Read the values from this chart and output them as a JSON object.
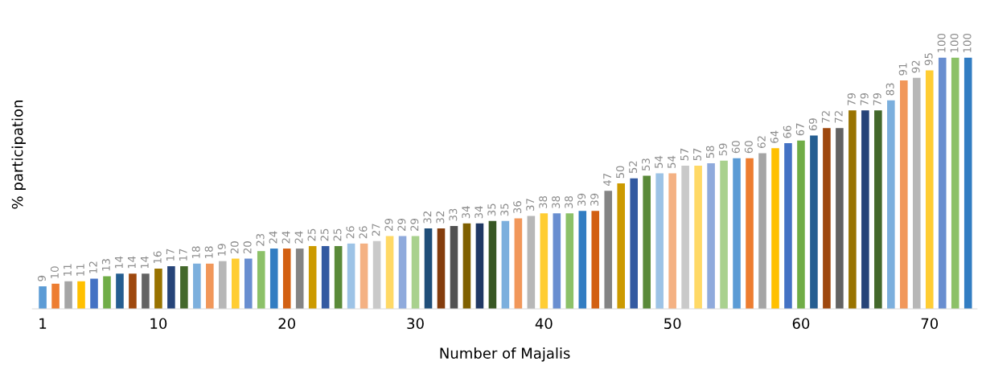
{
  "chart_data": {
    "type": "bar",
    "xlabel": "Number of Majalis",
    "ylabel": "% participation",
    "categories": [
      "1",
      null,
      null,
      null,
      null,
      null,
      null,
      null,
      null,
      "10",
      null,
      null,
      null,
      null,
      null,
      null,
      null,
      null,
      null,
      "20",
      null,
      null,
      null,
      null,
      null,
      null,
      null,
      null,
      null,
      "30",
      null,
      null,
      null,
      null,
      null,
      null,
      null,
      null,
      null,
      "40",
      null,
      null,
      null,
      null,
      null,
      null,
      null,
      null,
      null,
      "50",
      null,
      null,
      null,
      null,
      null,
      null,
      null,
      null,
      null,
      "60",
      null,
      null,
      null,
      null,
      null,
      null,
      null,
      null,
      null,
      "70",
      null,
      null,
      null
    ],
    "values": [
      9,
      10,
      11,
      11,
      12,
      13,
      14,
      14,
      14,
      16,
      17,
      17,
      18,
      18,
      19,
      20,
      20,
      23,
      24,
      24,
      24,
      25,
      25,
      25,
      26,
      26,
      27,
      29,
      29,
      29,
      32,
      32,
      33,
      34,
      34,
      35,
      35,
      36,
      37,
      38,
      38,
      38,
      39,
      39,
      47,
      50,
      52,
      53,
      54,
      54,
      57,
      57,
      58,
      59,
      60,
      60,
      62,
      64,
      66,
      67,
      69,
      72,
      72,
      79,
      79,
      79,
      83,
      91,
      92,
      95,
      100,
      100,
      100
    ],
    "colors": [
      "#5b9bd5",
      "#ed7d31",
      "#a5a5a5",
      "#ffc000",
      "#4472c4",
      "#70ad47",
      "#255e91",
      "#9e480e",
      "#636363",
      "#997300",
      "#264478",
      "#43682b",
      "#7cafdd",
      "#f1975a",
      "#b7b7b7",
      "#ffcd33",
      "#698ed0",
      "#8cc168",
      "#327dc2",
      "#d26012",
      "#848484",
      "#cc9a00",
      "#335aa1",
      "#5a8a39",
      "#9dc3e6",
      "#f4b183",
      "#c9c9c9",
      "#ffd966",
      "#8faadc",
      "#a9d18e",
      "#1f4e79",
      "#843c0c",
      "#525252",
      "#7f6000",
      "#203864",
      "#385723",
      "#7cafdd",
      "#f1975a",
      "#b7b7b7",
      "#ffcd33",
      "#698ed0",
      "#8cc168",
      "#327dc2",
      "#d26012",
      "#848484",
      "#cc9a00",
      "#335aa1",
      "#5a8a39",
      "#9dc3e6",
      "#f4b183",
      "#c9c9c9",
      "#ffd966",
      "#8faadc",
      "#a9d18e",
      "#5b9bd5",
      "#ed7d31",
      "#a5a5a5",
      "#ffc000",
      "#4472c4",
      "#70ad47",
      "#255e91",
      "#9e480e",
      "#636363",
      "#997300",
      "#264478",
      "#43682b",
      "#7cafdd",
      "#f1975a",
      "#b7b7b7",
      "#ffcd33",
      "#698ed0",
      "#8cc168",
      "#327dc2"
    ],
    "data_labels": true
  }
}
